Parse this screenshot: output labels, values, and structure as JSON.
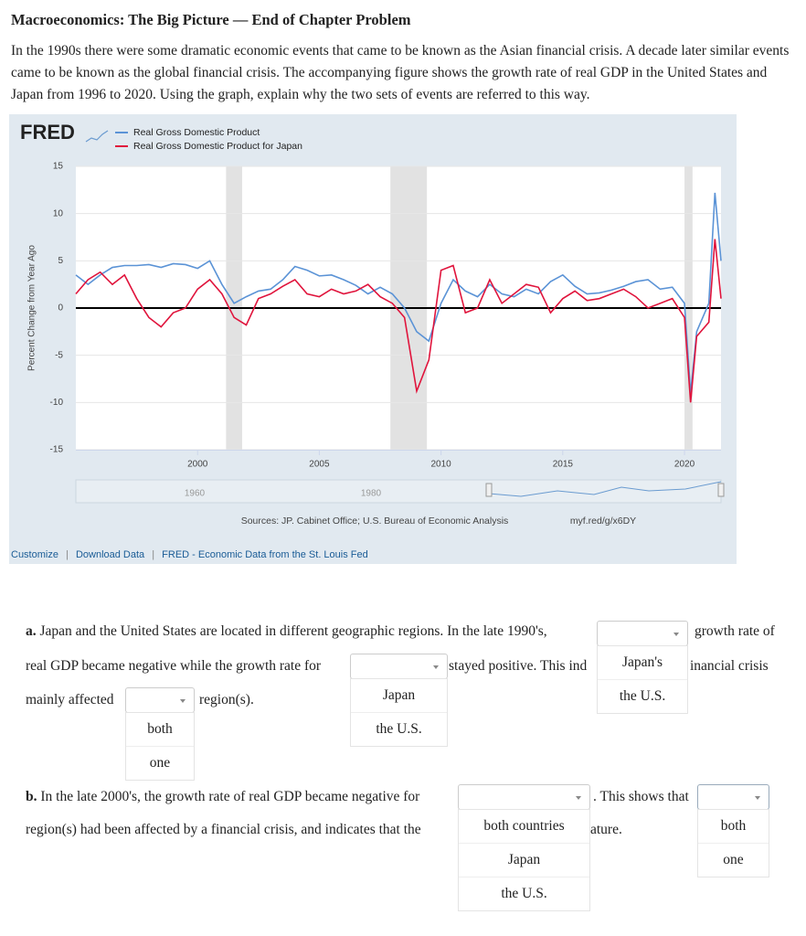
{
  "header": {
    "title": "Macroeconomics: The Big Picture — End of Chapter Problem"
  },
  "intro": "In the 1990s there were some dramatic economic events that came to be known as the Asian financial crisis. A decade later similar events came to be known as the global financial crisis. The accompanying figure shows the growth rate of real GDP in the United States and Japan from 1996 to 2020. Using the graph, explain why the two sets of events are referred to this way.",
  "chart_data": {
    "type": "line",
    "logo": "FRED",
    "y_label": "Percent Change from Year Ago",
    "x": [
      1995,
      1995.5,
      1996,
      1996.5,
      1997,
      1997.5,
      1998,
      1998.5,
      1999,
      1999.5,
      2000,
      2000.5,
      2001,
      2001.5,
      2002,
      2002.5,
      2003,
      2003.5,
      2004,
      2004.5,
      2005,
      2005.5,
      2006,
      2006.5,
      2007,
      2007.5,
      2008,
      2008.5,
      2009,
      2009.5,
      2010,
      2010.5,
      2011,
      2011.5,
      2012,
      2012.5,
      2013,
      2013.5,
      2014,
      2014.5,
      2015,
      2015.5,
      2016,
      2016.5,
      2017,
      2017.5,
      2018,
      2018.5,
      2019,
      2019.5,
      2020,
      2020.25,
      2020.5,
      2021,
      2021.25,
      2021.5
    ],
    "series": [
      {
        "name": "Real Gross Domestic Product",
        "color": "#5b93d6",
        "values": [
          3.5,
          2.5,
          3.5,
          4.3,
          4.5,
          4.5,
          4.6,
          4.3,
          4.7,
          4.6,
          4.2,
          5.0,
          2.5,
          0.5,
          1.2,
          1.8,
          2.0,
          3.0,
          4.4,
          4.0,
          3.4,
          3.5,
          3.0,
          2.4,
          1.5,
          2.2,
          1.5,
          0.0,
          -2.5,
          -3.5,
          0.5,
          3.0,
          1.8,
          1.2,
          2.5,
          1.5,
          1.2,
          2.0,
          1.5,
          2.8,
          3.5,
          2.3,
          1.5,
          1.6,
          1.9,
          2.3,
          2.8,
          3.0,
          2.0,
          2.2,
          0.5,
          -9.0,
          -2.5,
          0.5,
          12.2,
          5.0
        ]
      },
      {
        "name": "Real Gross Domestic Product for Japan",
        "color": "#e0143c",
        "values": [
          1.5,
          3.0,
          3.8,
          2.5,
          3.5,
          1.0,
          -1.0,
          -2.0,
          -0.5,
          0.0,
          2.0,
          3.0,
          1.5,
          -1.0,
          -1.8,
          1.0,
          1.5,
          2.3,
          3.0,
          1.5,
          1.2,
          2.0,
          1.5,
          1.8,
          2.5,
          1.2,
          0.5,
          -1.0,
          -8.8,
          -5.5,
          4.0,
          4.5,
          -0.5,
          0.0,
          3.0,
          0.5,
          1.5,
          2.5,
          2.2,
          -0.5,
          1.0,
          1.8,
          0.8,
          1.0,
          1.5,
          2.0,
          1.2,
          0.0,
          0.5,
          1.0,
          -1.0,
          -10.0,
          -3.0,
          -1.5,
          7.3,
          1.0
        ]
      }
    ],
    "recessions": [
      [
        2001.17,
        2001.83
      ],
      [
        2007.92,
        2009.42
      ],
      [
        2020.0,
        2020.33
      ]
    ],
    "xlim": [
      1995,
      2021.5
    ],
    "xticks": [
      2000,
      2005,
      2010,
      2015,
      2020
    ],
    "ylim": [
      -15,
      15
    ],
    "yticks": [
      -15,
      -10,
      -5,
      0,
      5,
      10,
      15
    ],
    "grid": true,
    "navigator_labels": [
      1960,
      1980
    ],
    "source": "Sources: JP. Cabinet Office; U.S. Bureau of Economic Analysis",
    "link": "myf.red/g/x6DY"
  },
  "footer_links": [
    "Customize",
    "Download Data",
    "FRED - Economic Data from the St. Louis Fed"
  ],
  "separator": "|",
  "question_a": {
    "label": "a.",
    "text": [
      "Japan and the United States are located in different geographic regions. In the late 1990's,",
      "growth rate of",
      "real GDP became negative while the growth rate for",
      "stayed positive. This ind",
      "inancial crisis",
      "mainly affected",
      "region(s)."
    ],
    "dropdowns": [
      [
        "Japan's",
        "the U.S."
      ],
      [
        "Japan",
        "the U.S."
      ],
      [
        "both",
        "one"
      ]
    ]
  },
  "question_b": {
    "label": "b.",
    "text": [
      "In the late 2000's, the growth rate of real GDP became negative for",
      ". This shows that",
      "region(s) had been affected by a financial crisis, and indicates that the",
      "ature."
    ],
    "dropdowns": [
      [
        "both countries",
        "Japan",
        "the U.S."
      ],
      [
        "both",
        "one"
      ]
    ]
  }
}
